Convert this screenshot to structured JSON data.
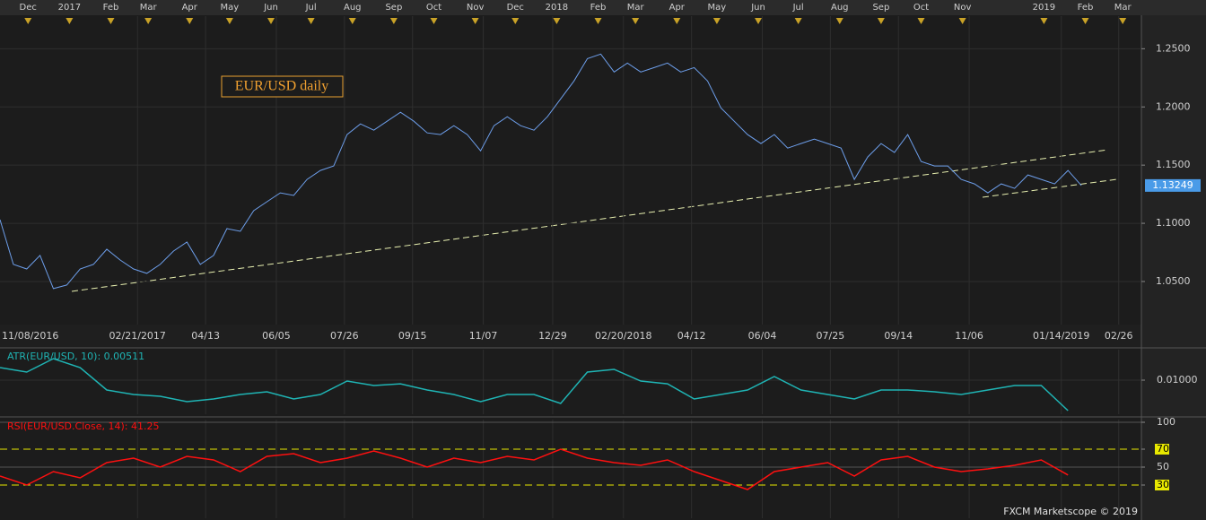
{
  "chart_data": [
    {
      "type": "line",
      "title": "EUR/USD daily",
      "color": "#6d9eea",
      "tag_color": "#4a9be8",
      "grid": true,
      "xlim": [
        "2016-11-10",
        "2019-03-15"
      ],
      "ylim": [
        1.013,
        1.278
      ],
      "yticks": [
        {
          "value": 1.05,
          "label": "1.0500"
        },
        {
          "value": 1.1,
          "label": "1.1000"
        },
        {
          "value": 1.15,
          "label": "1.1500"
        },
        {
          "value": 1.2,
          "label": "1.2000"
        },
        {
          "value": 1.25,
          "label": "1.2500"
        }
      ],
      "xticks": [
        {
          "value": "2016-11-08",
          "label": "11/08/2016"
        },
        {
          "value": "2017-02-21",
          "label": "02/21/2017"
        },
        {
          "value": "2017-04-13",
          "label": "04/13"
        },
        {
          "value": "2017-06-05",
          "label": "06/05"
        },
        {
          "value": "2017-07-26",
          "label": "07/26"
        },
        {
          "value": "2017-09-15",
          "label": "09/15"
        },
        {
          "value": "2017-11-07",
          "label": "11/07"
        },
        {
          "value": "2017-12-29",
          "label": "12/29"
        },
        {
          "value": "2018-02-20",
          "label": "02/20/2018"
        },
        {
          "value": "2018-04-12",
          "label": "04/12"
        },
        {
          "value": "2018-06-04",
          "label": "06/04"
        },
        {
          "value": "2018-07-25",
          "label": "07/25"
        },
        {
          "value": "2018-09-14",
          "label": "09/14"
        },
        {
          "value": "2018-11-06",
          "label": "11/06"
        },
        {
          "value": "2019-01-14",
          "label": "01/14/2019"
        },
        {
          "value": "2019-02-26",
          "label": "02/26"
        }
      ],
      "x2ticks": [
        {
          "value": "2016-12-01",
          "label": "Dec"
        },
        {
          "value": "2017-01-01",
          "label": "2017"
        },
        {
          "value": "2017-02-01",
          "label": "Feb"
        },
        {
          "value": "2017-03-01",
          "label": "Mar"
        },
        {
          "value": "2017-04-01",
          "label": "Apr"
        },
        {
          "value": "2017-05-01",
          "label": "May"
        },
        {
          "value": "2017-06-01",
          "label": "Jun"
        },
        {
          "value": "2017-07-01",
          "label": "Jul"
        },
        {
          "value": "2017-08-01",
          "label": "Aug"
        },
        {
          "value": "2017-09-01",
          "label": "Sep"
        },
        {
          "value": "2017-10-01",
          "label": "Oct"
        },
        {
          "value": "2017-11-01",
          "label": "Nov"
        },
        {
          "value": "2017-12-01",
          "label": "Dec"
        },
        {
          "value": "2018-01-01",
          "label": "2018"
        },
        {
          "value": "2018-02-01",
          "label": "Feb"
        },
        {
          "value": "2018-03-01",
          "label": "Mar"
        },
        {
          "value": "2018-04-01",
          "label": "Apr"
        },
        {
          "value": "2018-05-01",
          "label": "May"
        },
        {
          "value": "2018-06-01",
          "label": "Jun"
        },
        {
          "value": "2018-07-01",
          "label": "Jul"
        },
        {
          "value": "2018-08-01",
          "label": "Aug"
        },
        {
          "value": "2018-09-01",
          "label": "Sep"
        },
        {
          "value": "2018-10-01",
          "label": "Oct"
        },
        {
          "value": "2018-11-01",
          "label": "Nov"
        },
        {
          "value": "2019-01-01",
          "label": "2019"
        },
        {
          "value": "2019-02-01",
          "label": "Feb"
        },
        {
          "value": "2019-03-01",
          "label": "Mar"
        }
      ],
      "x": [
        "2016-11-10",
        "2016-11-20",
        "2016-11-30",
        "2016-12-10",
        "2016-12-20",
        "2016-12-30",
        "2017-01-09",
        "2017-01-19",
        "2017-01-29",
        "2017-02-08",
        "2017-02-18",
        "2017-02-28",
        "2017-03-10",
        "2017-03-20",
        "2017-03-30",
        "2017-04-09",
        "2017-04-19",
        "2017-04-29",
        "2017-05-09",
        "2017-05-19",
        "2017-05-29",
        "2017-06-08",
        "2017-06-18",
        "2017-06-28",
        "2017-07-08",
        "2017-07-18",
        "2017-07-28",
        "2017-08-07",
        "2017-08-17",
        "2017-08-27",
        "2017-09-06",
        "2017-09-16",
        "2017-09-26",
        "2017-10-06",
        "2017-10-16",
        "2017-10-26",
        "2017-11-05",
        "2017-11-15",
        "2017-11-25",
        "2017-12-05",
        "2017-12-15",
        "2017-12-25",
        "2018-01-04",
        "2018-01-14",
        "2018-01-24",
        "2018-02-03",
        "2018-02-13",
        "2018-02-23",
        "2018-03-05",
        "2018-03-15",
        "2018-03-25",
        "2018-04-04",
        "2018-04-14",
        "2018-04-24",
        "2018-05-04",
        "2018-05-14",
        "2018-05-24",
        "2018-06-03",
        "2018-06-13",
        "2018-06-23",
        "2018-07-03",
        "2018-07-13",
        "2018-07-23",
        "2018-08-02",
        "2018-08-12",
        "2018-08-22",
        "2018-09-01",
        "2018-09-11",
        "2018-09-21",
        "2018-10-01",
        "2018-10-11",
        "2018-10-21",
        "2018-10-31",
        "2018-11-10",
        "2018-11-20",
        "2018-11-30",
        "2018-12-10",
        "2018-12-20",
        "2018-12-30",
        "2019-01-09",
        "2019-01-19",
        "2019-01-29"
      ],
      "values": [
        1.1031,
        1.0647,
        1.0608,
        1.0724,
        1.0439,
        1.047,
        1.0608,
        1.0647,
        1.0777,
        1.0685,
        1.0608,
        1.057,
        1.0647,
        1.0762,
        1.0839,
        1.0647,
        1.0724,
        1.0954,
        1.0931,
        1.1108,
        1.1185,
        1.1262,
        1.1239,
        1.1377,
        1.1454,
        1.1493,
        1.1762,
        1.1854,
        1.18,
        1.1877,
        1.1954,
        1.1877,
        1.1777,
        1.1762,
        1.1839,
        1.1762,
        1.1623,
        1.1839,
        1.1916,
        1.1839,
        1.18,
        1.1916,
        1.2069,
        1.2223,
        1.2415,
        1.2454,
        1.23,
        1.2377,
        1.23,
        1.2338,
        1.2377,
        1.23,
        1.2338,
        1.2223,
        1.1992,
        1.1877,
        1.1762,
        1.1685,
        1.1762,
        1.1646,
        1.1685,
        1.1723,
        1.1685,
        1.1646,
        1.1377,
        1.157,
        1.1685,
        1.1608,
        1.1762,
        1.1531,
        1.1493,
        1.1493,
        1.1377,
        1.1339,
        1.1262,
        1.1339,
        1.13,
        1.1416,
        1.1377,
        1.1339,
        1.1454,
        1.13249
      ]
    },
    {
      "type": "line",
      "title": "ATR(EUR/USD, 10): 0.00511",
      "color": "#1fb4b4",
      "grid": true,
      "xlim": [
        "2016-11-10",
        "2019-03-15"
      ],
      "ylim": [
        0.00454,
        0.01489
      ],
      "yticks": [
        {
          "value": 0.01,
          "label": "0.01000"
        }
      ],
      "x": [
        "2016-11-10",
        "2016-11-30",
        "2016-12-20",
        "2017-01-09",
        "2017-01-29",
        "2017-02-18",
        "2017-03-10",
        "2017-03-30",
        "2017-04-19",
        "2017-05-09",
        "2017-05-29",
        "2017-06-18",
        "2017-07-08",
        "2017-07-28",
        "2017-08-17",
        "2017-09-06",
        "2017-09-26",
        "2017-10-16",
        "2017-11-05",
        "2017-11-25",
        "2017-12-15",
        "2018-01-04",
        "2018-01-24",
        "2018-02-13",
        "2018-03-05",
        "2018-03-25",
        "2018-04-14",
        "2018-05-04",
        "2018-05-24",
        "2018-06-13",
        "2018-07-03",
        "2018-07-23",
        "2018-08-12",
        "2018-09-01",
        "2018-09-21",
        "2018-10-11",
        "2018-10-31",
        "2018-11-20",
        "2018-12-10",
        "2018-12-30",
        "2019-01-19"
      ],
      "values": [
        0.01201,
        0.01129,
        0.01345,
        0.01201,
        0.00842,
        0.0077,
        0.00741,
        0.00655,
        0.00698,
        0.0077,
        0.00813,
        0.00698,
        0.0077,
        0.00986,
        0.00914,
        0.00942,
        0.00842,
        0.0077,
        0.00655,
        0.0077,
        0.0077,
        0.00626,
        0.01129,
        0.01173,
        0.00986,
        0.00942,
        0.00698,
        0.0077,
        0.00842,
        0.01058,
        0.00842,
        0.0077,
        0.00698,
        0.00842,
        0.00842,
        0.00813,
        0.0077,
        0.00842,
        0.00914,
        0.00914,
        0.00511
      ]
    },
    {
      "type": "line",
      "title": "RSI(EUR/USD.Close, 14): 41.25",
      "color": "#ff1010",
      "grid": true,
      "xlim": [
        "2016-11-10",
        "2019-03-15"
      ],
      "ylim": [
        -7,
        103
      ],
      "yticks": [
        30,
        50,
        70,
        100
      ],
      "levels": [
        30,
        70
      ],
      "level_color": "#e8e800",
      "x": [
        "2016-11-10",
        "2016-11-30",
        "2016-12-20",
        "2017-01-09",
        "2017-01-29",
        "2017-02-18",
        "2017-03-10",
        "2017-03-30",
        "2017-04-19",
        "2017-05-09",
        "2017-05-29",
        "2017-06-18",
        "2017-07-08",
        "2017-07-28",
        "2017-08-17",
        "2017-09-06",
        "2017-09-26",
        "2017-10-16",
        "2017-11-05",
        "2017-11-25",
        "2017-12-15",
        "2018-01-04",
        "2018-01-24",
        "2018-02-13",
        "2018-03-05",
        "2018-03-25",
        "2018-04-14",
        "2018-05-04",
        "2018-05-24",
        "2018-06-13",
        "2018-07-03",
        "2018-07-23",
        "2018-08-12",
        "2018-09-01",
        "2018-09-21",
        "2018-10-11",
        "2018-10-31",
        "2018-11-20",
        "2018-12-10",
        "2018-12-30",
        "2019-01-19"
      ],
      "values": [
        40,
        30,
        45,
        38,
        55,
        60,
        50,
        62,
        58,
        45,
        62,
        65,
        55,
        60,
        68,
        60,
        50,
        60,
        55,
        62,
        58,
        70,
        60,
        55,
        52,
        58,
        45,
        35,
        25,
        45,
        50,
        55,
        40,
        58,
        62,
        50,
        45,
        48,
        52,
        58,
        41.25
      ]
    }
  ],
  "footer": "FXCM Marketscope © 2019"
}
